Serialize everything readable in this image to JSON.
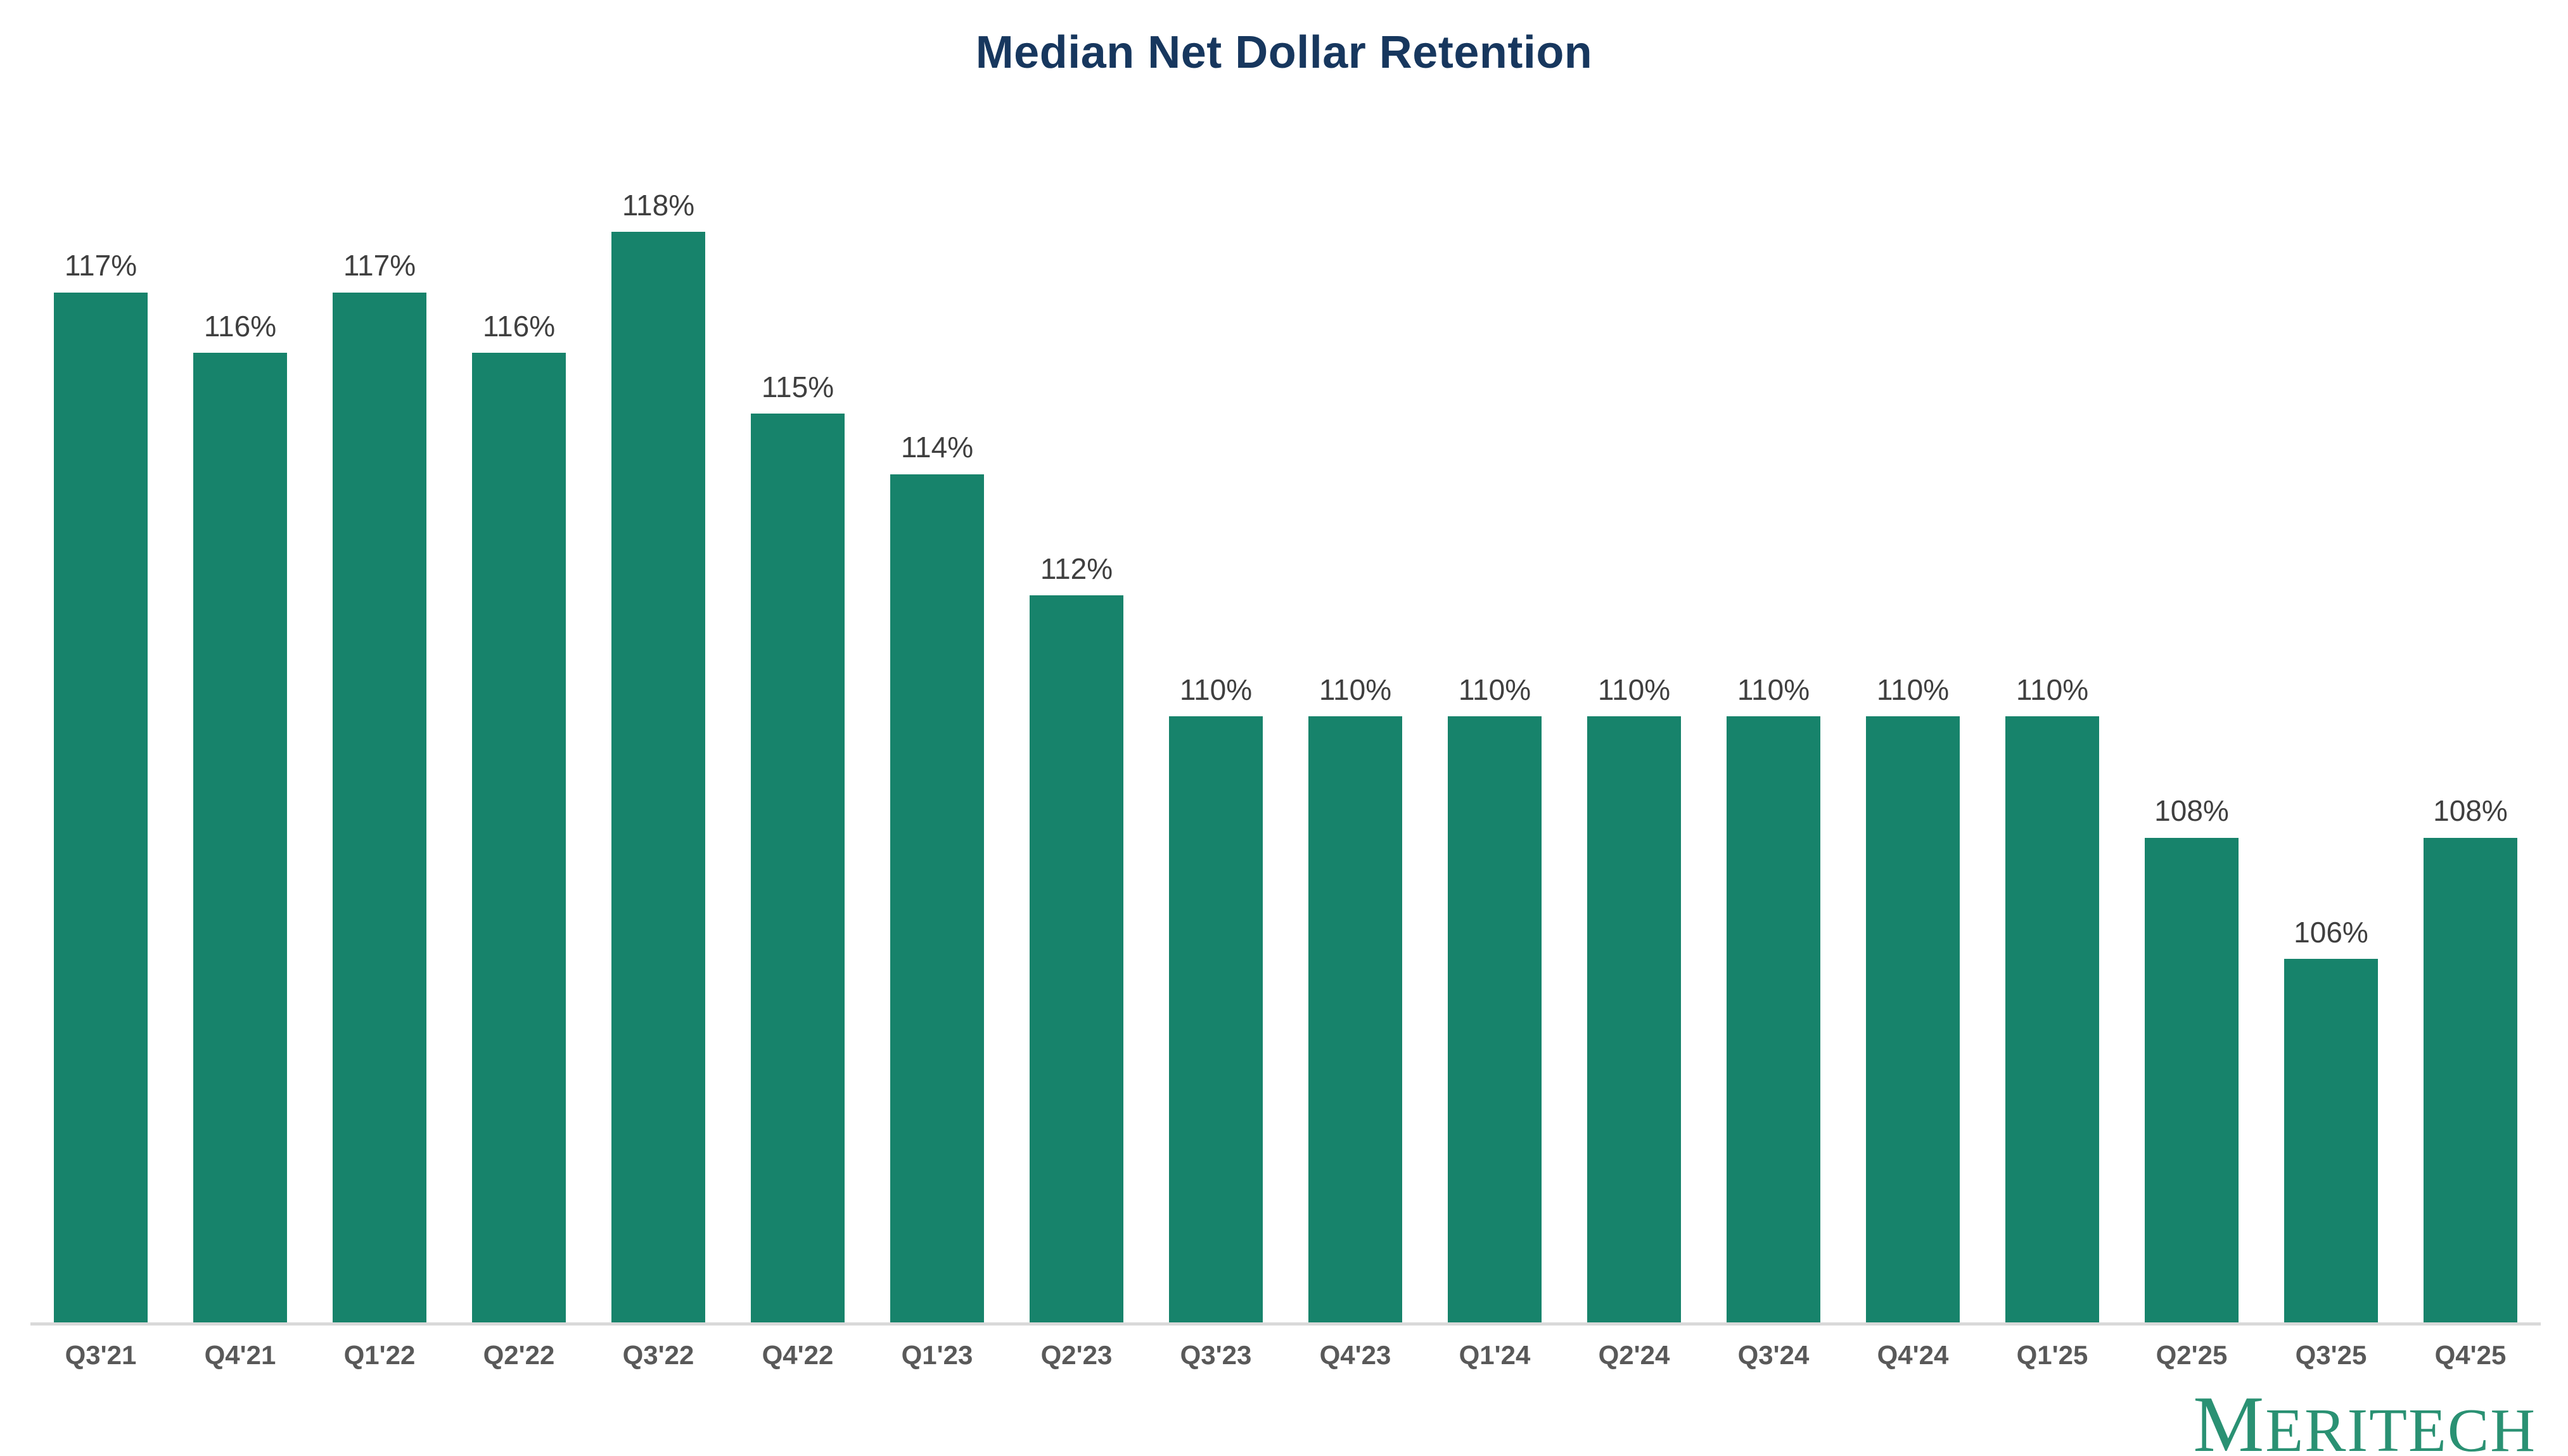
{
  "title": "Median Net Dollar Retention",
  "colors": {
    "title": "#17375E",
    "bar": "#17836B",
    "value_label": "#3F3F3F",
    "axis_label": "#595959",
    "axis_line": "#D9D9D9",
    "logo": "#2A9173",
    "background": "#FFFFFF"
  },
  "brand": {
    "logo_text_initial": "M",
    "logo_text_rest": "ERITECH"
  },
  "chart_data": {
    "type": "bar",
    "title": "Median Net Dollar Retention",
    "xlabel": "",
    "ylabel": "",
    "categories": [
      "Q3'21",
      "Q4'21",
      "Q1'22",
      "Q2'22",
      "Q3'22",
      "Q4'22",
      "Q1'23",
      "Q2'23",
      "Q3'23",
      "Q4'23",
      "Q1'24",
      "Q2'24",
      "Q3'24",
      "Q4'24",
      "Q1'25",
      "Q2'25",
      "Q3'25",
      "Q4'25"
    ],
    "values": [
      117,
      116,
      117,
      116,
      118,
      115,
      114,
      112,
      110,
      110,
      110,
      110,
      110,
      110,
      110,
      108,
      106,
      108
    ],
    "value_labels": [
      "117%",
      "116%",
      "117%",
      "116%",
      "118%",
      "115%",
      "114%",
      "112%",
      "110%",
      "110%",
      "110%",
      "110%",
      "110%",
      "110%",
      "110%",
      "108%",
      "106%",
      "108%"
    ],
    "unit": "%",
    "ylim": [
      100,
      118
    ],
    "baseline_value": 100,
    "grid": false,
    "legend": false,
    "data_labels": "above-bars"
  }
}
